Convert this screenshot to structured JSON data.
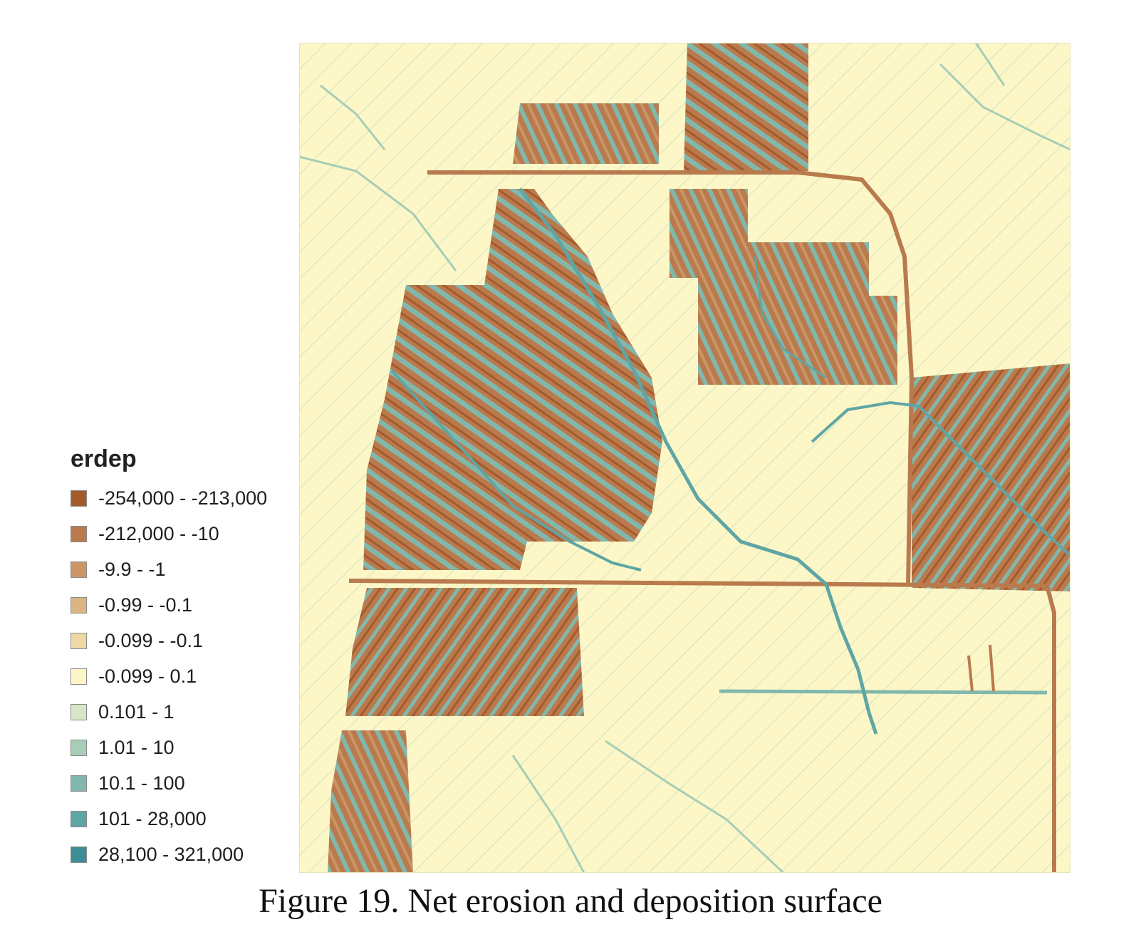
{
  "legend": {
    "title": "erdep",
    "items": [
      {
        "label": "-254,000 - -213,000",
        "color": "#a55a2c"
      },
      {
        "label": "-212,000 - -10",
        "color": "#b97a4e"
      },
      {
        "label": "-9.9 - -1",
        "color": "#cb9664"
      },
      {
        "label": "-0.99 - -0.1",
        "color": "#dbb684"
      },
      {
        "label": "-0.099 - -0.1",
        "color": "#eed8a3"
      },
      {
        "label": "-0.099 - 0.1",
        "color": "#fdf7c8"
      },
      {
        "label": "0.101 - 1",
        "color": "#d6e6c6"
      },
      {
        "label": "1.01 - 10",
        "color": "#a6cdb6"
      },
      {
        "label": "10.1 - 100",
        "color": "#82b8ac"
      },
      {
        "label": "101 - 28,000",
        "color": "#5fa5a4"
      },
      {
        "label": "28,100 - 321,000",
        "color": "#3d8d96"
      }
    ]
  },
  "caption": "Figure 19. Net erosion and deposition surface"
}
